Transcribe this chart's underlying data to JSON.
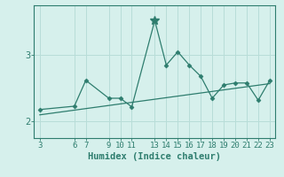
{
  "x_data": [
    3,
    6,
    7,
    9,
    10,
    11,
    13,
    14,
    15,
    16,
    17,
    18,
    19,
    20,
    21,
    22,
    23
  ],
  "y_data": [
    2.18,
    2.23,
    2.62,
    2.35,
    2.35,
    2.22,
    3.52,
    2.85,
    3.05,
    2.85,
    2.68,
    2.35,
    2.55,
    2.58,
    2.58,
    2.32,
    2.62
  ],
  "trend_x": [
    3,
    23
  ],
  "trend_y": [
    2.1,
    2.57
  ],
  "line_color": "#2e7d6e",
  "bg_color": "#d6f0ec",
  "grid_color": "#b8ddd8",
  "xlabel": "Humidex (Indice chaleur)",
  "xticks": [
    3,
    6,
    7,
    9,
    10,
    11,
    13,
    14,
    15,
    16,
    17,
    18,
    19,
    20,
    21,
    22,
    23
  ],
  "yticks": [
    2,
    3
  ],
  "ylim": [
    1.75,
    3.75
  ],
  "xlim": [
    2.5,
    23.5
  ],
  "xlabel_fontsize": 7.5,
  "tick_fontsize": 6.5
}
